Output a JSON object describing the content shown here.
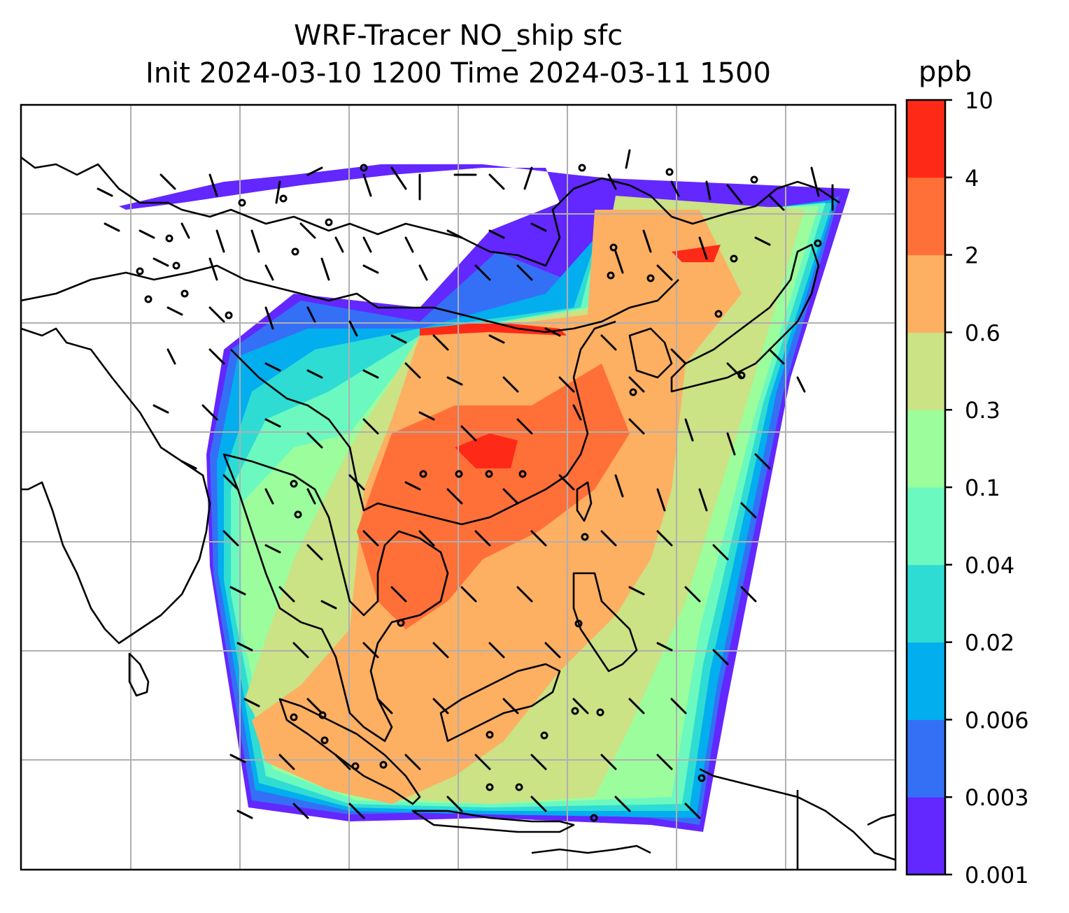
{
  "title_line1": "WRF-Tracer NO_ship sfc",
  "title_line2": "Init 2024-03-10 1200 Time 2024-03-11 1500",
  "colorbar": {
    "unit": "ppb",
    "ticks": [
      "0.001",
      "0.003",
      "0.006",
      "0.02",
      "0.04",
      "0.1",
      "0.3",
      "0.6",
      "2",
      "4",
      "10"
    ],
    "colors": [
      "#6327ff",
      "#3470f5",
      "#03aeee",
      "#2fdcd4",
      "#6bf9c0",
      "#9cfd9c",
      "#cbe285",
      "#fdaf62",
      "#ff7039",
      "#fe2a17"
    ]
  },
  "map": {
    "overlays": [
      "coastlines",
      "gridlines",
      "wind-barbs"
    ],
    "gridline_color": "#b0b0b0"
  }
}
